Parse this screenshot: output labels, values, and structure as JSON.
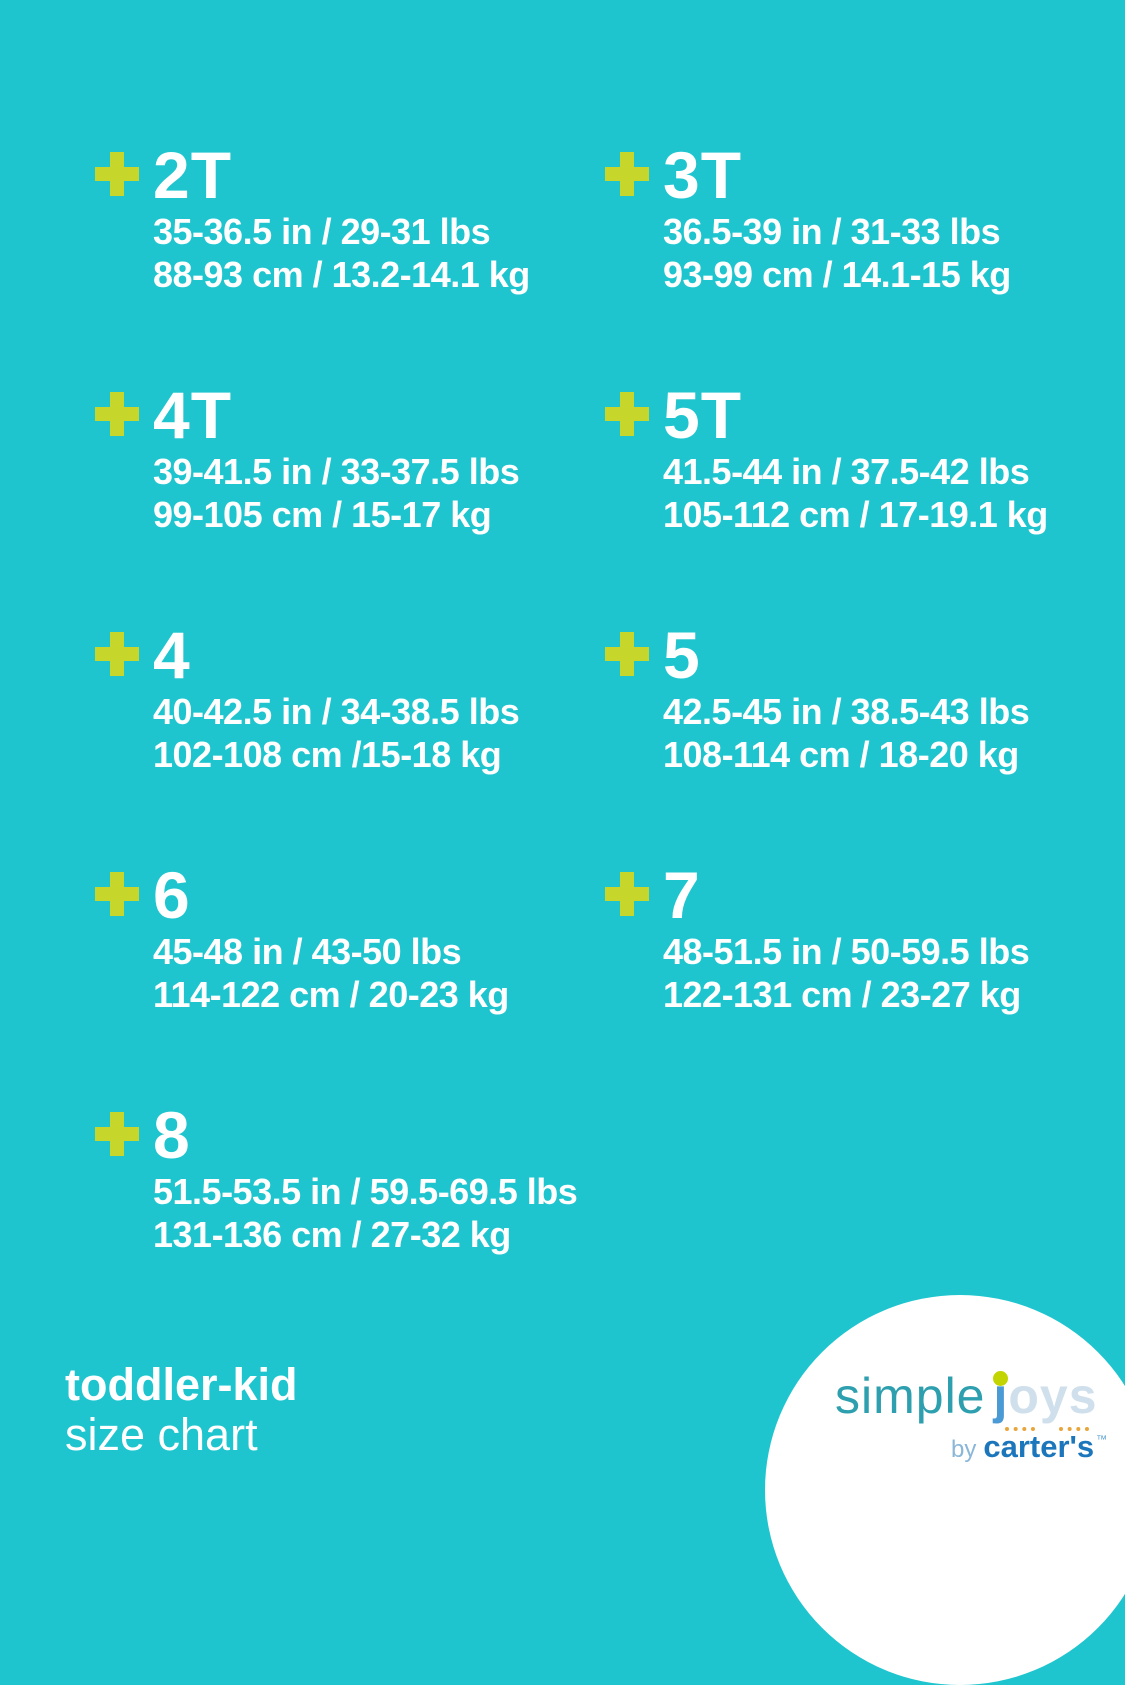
{
  "colors": {
    "background": "#1ec5ce",
    "plus_accent": "#c7d62a",
    "text": "#ffffff",
    "logo_simple": "#2d9fae",
    "logo_j": "#4a9ad6",
    "logo_oys": "#cfdfeb",
    "logo_j_dot": "#c2d500",
    "logo_underline_dots": "#e8a53c",
    "logo_by": "#8ab7d9",
    "logo_carters": "#1c76bb"
  },
  "sizes": [
    {
      "label": "2T",
      "imperial": "35-36.5 in / 29-31 lbs",
      "metric": "88-93 cm / 13.2-14.1 kg"
    },
    {
      "label": "3T",
      "imperial": "36.5-39 in / 31-33 lbs",
      "metric": "93-99 cm / 14.1-15 kg"
    },
    {
      "label": "4T",
      "imperial": "39-41.5 in / 33-37.5 lbs",
      "metric": "99-105 cm / 15-17 kg"
    },
    {
      "label": "5T",
      "imperial": "41.5-44 in / 37.5-42 lbs",
      "metric": "105-112 cm / 17-19.1 kg"
    },
    {
      "label": "4",
      "imperial": "40-42.5 in / 34-38.5 lbs",
      "metric": "102-108 cm /15-18 kg"
    },
    {
      "label": "5",
      "imperial": "42.5-45 in / 38.5-43 lbs",
      "metric": "108-114 cm / 18-20 kg"
    },
    {
      "label": "6",
      "imperial": "45-48 in / 43-50 lbs",
      "metric": "114-122 cm / 20-23 kg"
    },
    {
      "label": "7",
      "imperial": "48-51.5 in / 50-59.5 lbs",
      "metric": "122-131 cm / 23-27 kg"
    },
    {
      "label": "8",
      "imperial": "51.5-53.5 in / 59.5-69.5 lbs",
      "metric": "131-136 cm / 27-32 kg"
    }
  ],
  "footer": {
    "title_line1": "toddler-kid",
    "title_line2": "size chart"
  },
  "logo": {
    "simple": "simple",
    "j": "j",
    "oys": "oys",
    "by": "by",
    "carters": "carter's",
    "trademark": "™"
  }
}
